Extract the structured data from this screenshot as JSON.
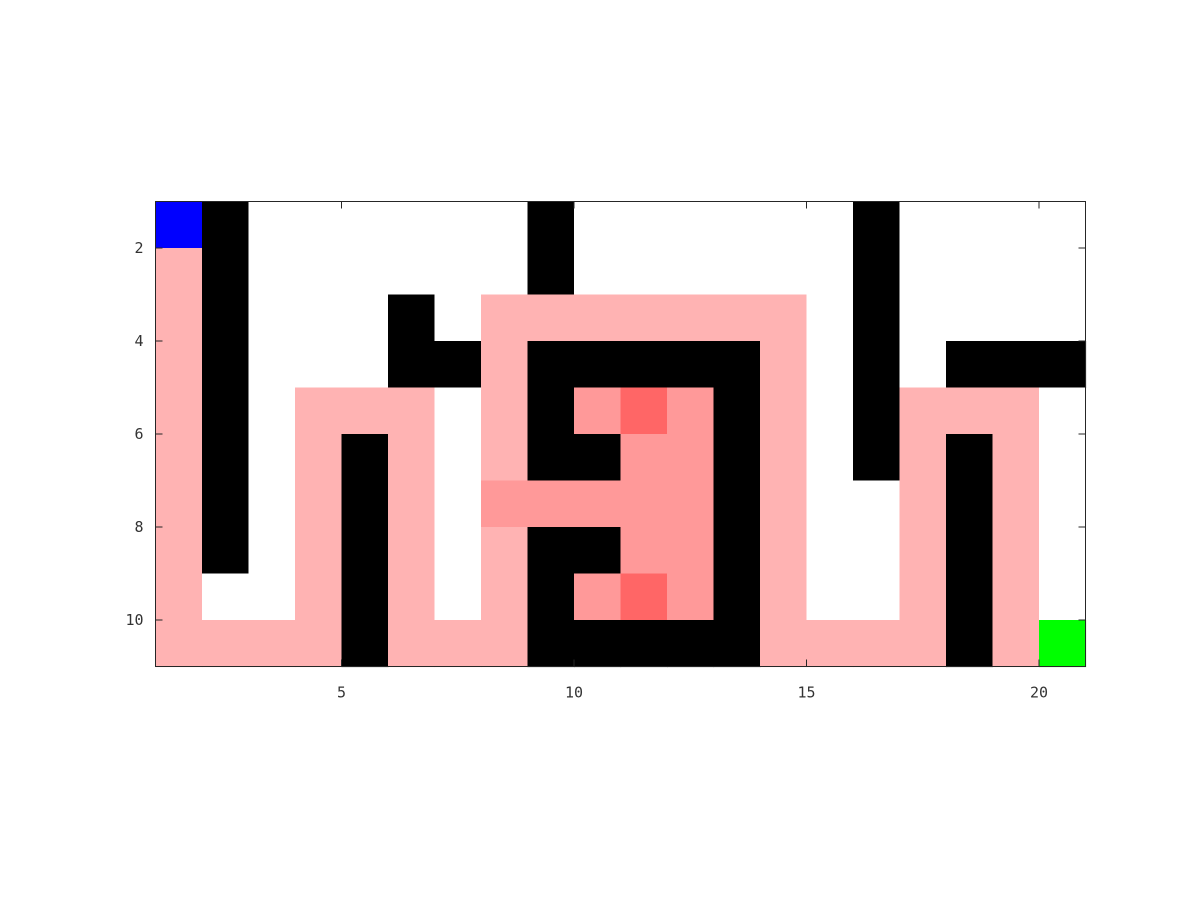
{
  "chart_data": {
    "type": "heatmap",
    "title": "",
    "xlabel": "",
    "ylabel": "",
    "x_range": [
      1,
      21
    ],
    "y_range": [
      1,
      11
    ],
    "y_reversed": true,
    "grid": false,
    "xticks": [
      5,
      10,
      15,
      20
    ],
    "yticks": [
      2,
      4,
      6,
      8,
      10
    ],
    "legend": "none",
    "value_legend": {
      "0": "open",
      "1": "wall",
      "2": "path",
      "3": "revisited path",
      "4": "most revisited",
      "5": "start",
      "6": "goal"
    },
    "colors": {
      "0": "#ffffff",
      "1": "#000000",
      "2": "#ffb3b3",
      "3": "#ff9999",
      "4": "#ff6666",
      "5": "#0000ff",
      "6": "#00ff00"
    },
    "grid_values": [
      [
        5,
        1,
        0,
        0,
        0,
        0,
        0,
        0,
        1,
        0,
        0,
        0,
        0,
        0,
        0,
        1,
        0,
        0,
        0,
        0
      ],
      [
        2,
        1,
        0,
        0,
        0,
        0,
        0,
        0,
        1,
        0,
        0,
        0,
        0,
        0,
        0,
        1,
        0,
        0,
        0,
        0
      ],
      [
        2,
        1,
        0,
        0,
        0,
        1,
        0,
        2,
        2,
        2,
        2,
        2,
        2,
        2,
        0,
        1,
        0,
        0,
        0,
        0
      ],
      [
        2,
        1,
        0,
        0,
        0,
        1,
        1,
        2,
        1,
        1,
        1,
        1,
        1,
        2,
        0,
        1,
        0,
        1,
        1,
        1
      ],
      [
        2,
        1,
        0,
        2,
        2,
        2,
        0,
        2,
        1,
        3,
        4,
        3,
        1,
        2,
        0,
        1,
        2,
        2,
        2,
        0
      ],
      [
        2,
        1,
        0,
        2,
        1,
        2,
        0,
        2,
        1,
        1,
        3,
        3,
        1,
        2,
        0,
        1,
        2,
        1,
        2,
        0
      ],
      [
        2,
        1,
        0,
        2,
        1,
        2,
        0,
        3,
        3,
        3,
        3,
        3,
        1,
        2,
        0,
        0,
        2,
        1,
        2,
        0
      ],
      [
        2,
        1,
        0,
        2,
        1,
        2,
        0,
        2,
        1,
        1,
        3,
        3,
        1,
        2,
        0,
        0,
        2,
        1,
        2,
        0
      ],
      [
        2,
        0,
        0,
        2,
        1,
        2,
        0,
        2,
        1,
        3,
        4,
        3,
        1,
        2,
        0,
        0,
        2,
        1,
        2,
        0
      ],
      [
        2,
        2,
        2,
        2,
        1,
        2,
        2,
        2,
        1,
        1,
        1,
        1,
        1,
        2,
        2,
        2,
        2,
        1,
        2,
        6
      ]
    ]
  }
}
